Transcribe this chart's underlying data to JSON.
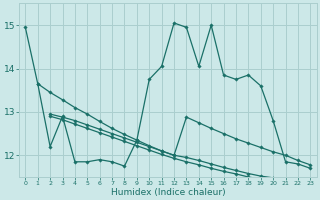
{
  "xlabel": "Humidex (Indice chaleur)",
  "background_color": "#cce8e8",
  "grid_color": "#aacece",
  "line_color": "#1a7068",
  "xlim": [
    -0.5,
    23.5
  ],
  "ylim": [
    11.5,
    15.5
  ],
  "yticks": [
    12,
    13,
    14,
    15
  ],
  "xticks": [
    0,
    1,
    2,
    3,
    4,
    5,
    6,
    7,
    8,
    9,
    10,
    11,
    12,
    13,
    14,
    15,
    16,
    17,
    18,
    19,
    20,
    21,
    22,
    23
  ],
  "series": [
    {
      "x": [
        0,
        1,
        2,
        3,
        4,
        5,
        6,
        7,
        8,
        9,
        10,
        11,
        12,
        13,
        14,
        15,
        16,
        17,
        18,
        19,
        20,
        21,
        22,
        23
      ],
      "y": [
        14.95,
        13.65,
        12.2,
        12.9,
        11.85,
        11.85,
        11.9,
        11.85,
        11.75,
        12.35,
        13.75,
        14.05,
        15.05,
        14.95,
        14.05,
        15.0,
        13.85,
        13.75,
        13.85,
        13.6,
        12.8,
        11.85,
        11.8,
        11.7
      ]
    },
    {
      "x": [
        1,
        2,
        3,
        4,
        5,
        6,
        7,
        8,
        9,
        10,
        11,
        12,
        13,
        14,
        15,
        16,
        17,
        18,
        19,
        20,
        21,
        22,
        23
      ],
      "y": [
        13.65,
        13.45,
        13.28,
        13.1,
        12.95,
        12.78,
        12.62,
        12.48,
        12.35,
        12.22,
        12.1,
        12.0,
        12.88,
        12.75,
        12.62,
        12.5,
        12.38,
        12.28,
        12.18,
        12.08,
        12.0,
        11.88,
        11.78
      ]
    },
    {
      "x": [
        2,
        3,
        4,
        5,
        6,
        7,
        8,
        9,
        10,
        11,
        12,
        13,
        14,
        15,
        16,
        17,
        18,
        19,
        20,
        21,
        22,
        23
      ],
      "y": [
        12.95,
        12.88,
        12.8,
        12.7,
        12.6,
        12.5,
        12.4,
        12.3,
        12.2,
        12.1,
        12.0,
        11.95,
        11.88,
        11.8,
        11.72,
        11.65,
        11.58,
        11.52,
        11.48,
        11.43,
        11.38,
        11.35
      ]
    },
    {
      "x": [
        2,
        3,
        4,
        5,
        6,
        7,
        8,
        9,
        10,
        11,
        12,
        13,
        14,
        15,
        16,
        17,
        18,
        19,
        20,
        21,
        22,
        23
      ],
      "y": [
        12.9,
        12.82,
        12.72,
        12.62,
        12.52,
        12.42,
        12.32,
        12.22,
        12.12,
        12.02,
        11.93,
        11.85,
        11.78,
        11.7,
        11.63,
        11.57,
        11.5,
        11.45,
        11.4,
        11.35,
        11.3,
        11.25
      ]
    }
  ]
}
